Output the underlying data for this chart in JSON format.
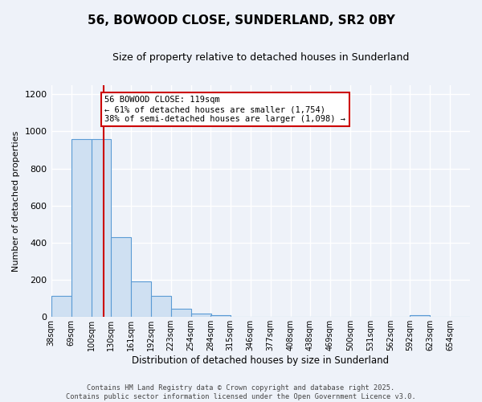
{
  "title": "56, BOWOOD CLOSE, SUNDERLAND, SR2 0BY",
  "subtitle": "Size of property relative to detached houses in Sunderland",
  "xlabel": "Distribution of detached houses by size in Sunderland",
  "ylabel": "Number of detached properties",
  "categories": [
    "38sqm",
    "69sqm",
    "100sqm",
    "130sqm",
    "161sqm",
    "192sqm",
    "223sqm",
    "254sqm",
    "284sqm",
    "315sqm",
    "346sqm",
    "377sqm",
    "408sqm",
    "438sqm",
    "469sqm",
    "500sqm",
    "531sqm",
    "562sqm",
    "592sqm",
    "623sqm",
    "654sqm"
  ],
  "bin_edges": [
    38,
    69,
    100,
    130,
    161,
    192,
    223,
    254,
    284,
    315,
    346,
    377,
    408,
    438,
    469,
    500,
    531,
    562,
    592,
    623,
    654
  ],
  "bin_width": 31,
  "values": [
    115,
    960,
    960,
    430,
    190,
    115,
    45,
    18,
    12,
    0,
    0,
    0,
    0,
    0,
    0,
    0,
    0,
    0,
    8,
    0,
    0
  ],
  "bar_color": "#cfe0f2",
  "bar_edge_color": "#5b9bd5",
  "vline_color": "#cc0000",
  "vline_x": 119,
  "annotation_text": "56 BOWOOD CLOSE: 119sqm\n← 61% of detached houses are smaller (1,754)\n38% of semi-detached houses are larger (1,098) →",
  "annotation_box_color": "#ffffff",
  "annotation_box_edge_color": "#cc0000",
  "ylim": [
    0,
    1250
  ],
  "yticks": [
    0,
    200,
    400,
    600,
    800,
    1000,
    1200
  ],
  "background_color": "#eef2f9",
  "grid_color": "#ffffff",
  "footer_line1": "Contains HM Land Registry data © Crown copyright and database right 2025.",
  "footer_line2": "Contains public sector information licensed under the Open Government Licence v3.0."
}
